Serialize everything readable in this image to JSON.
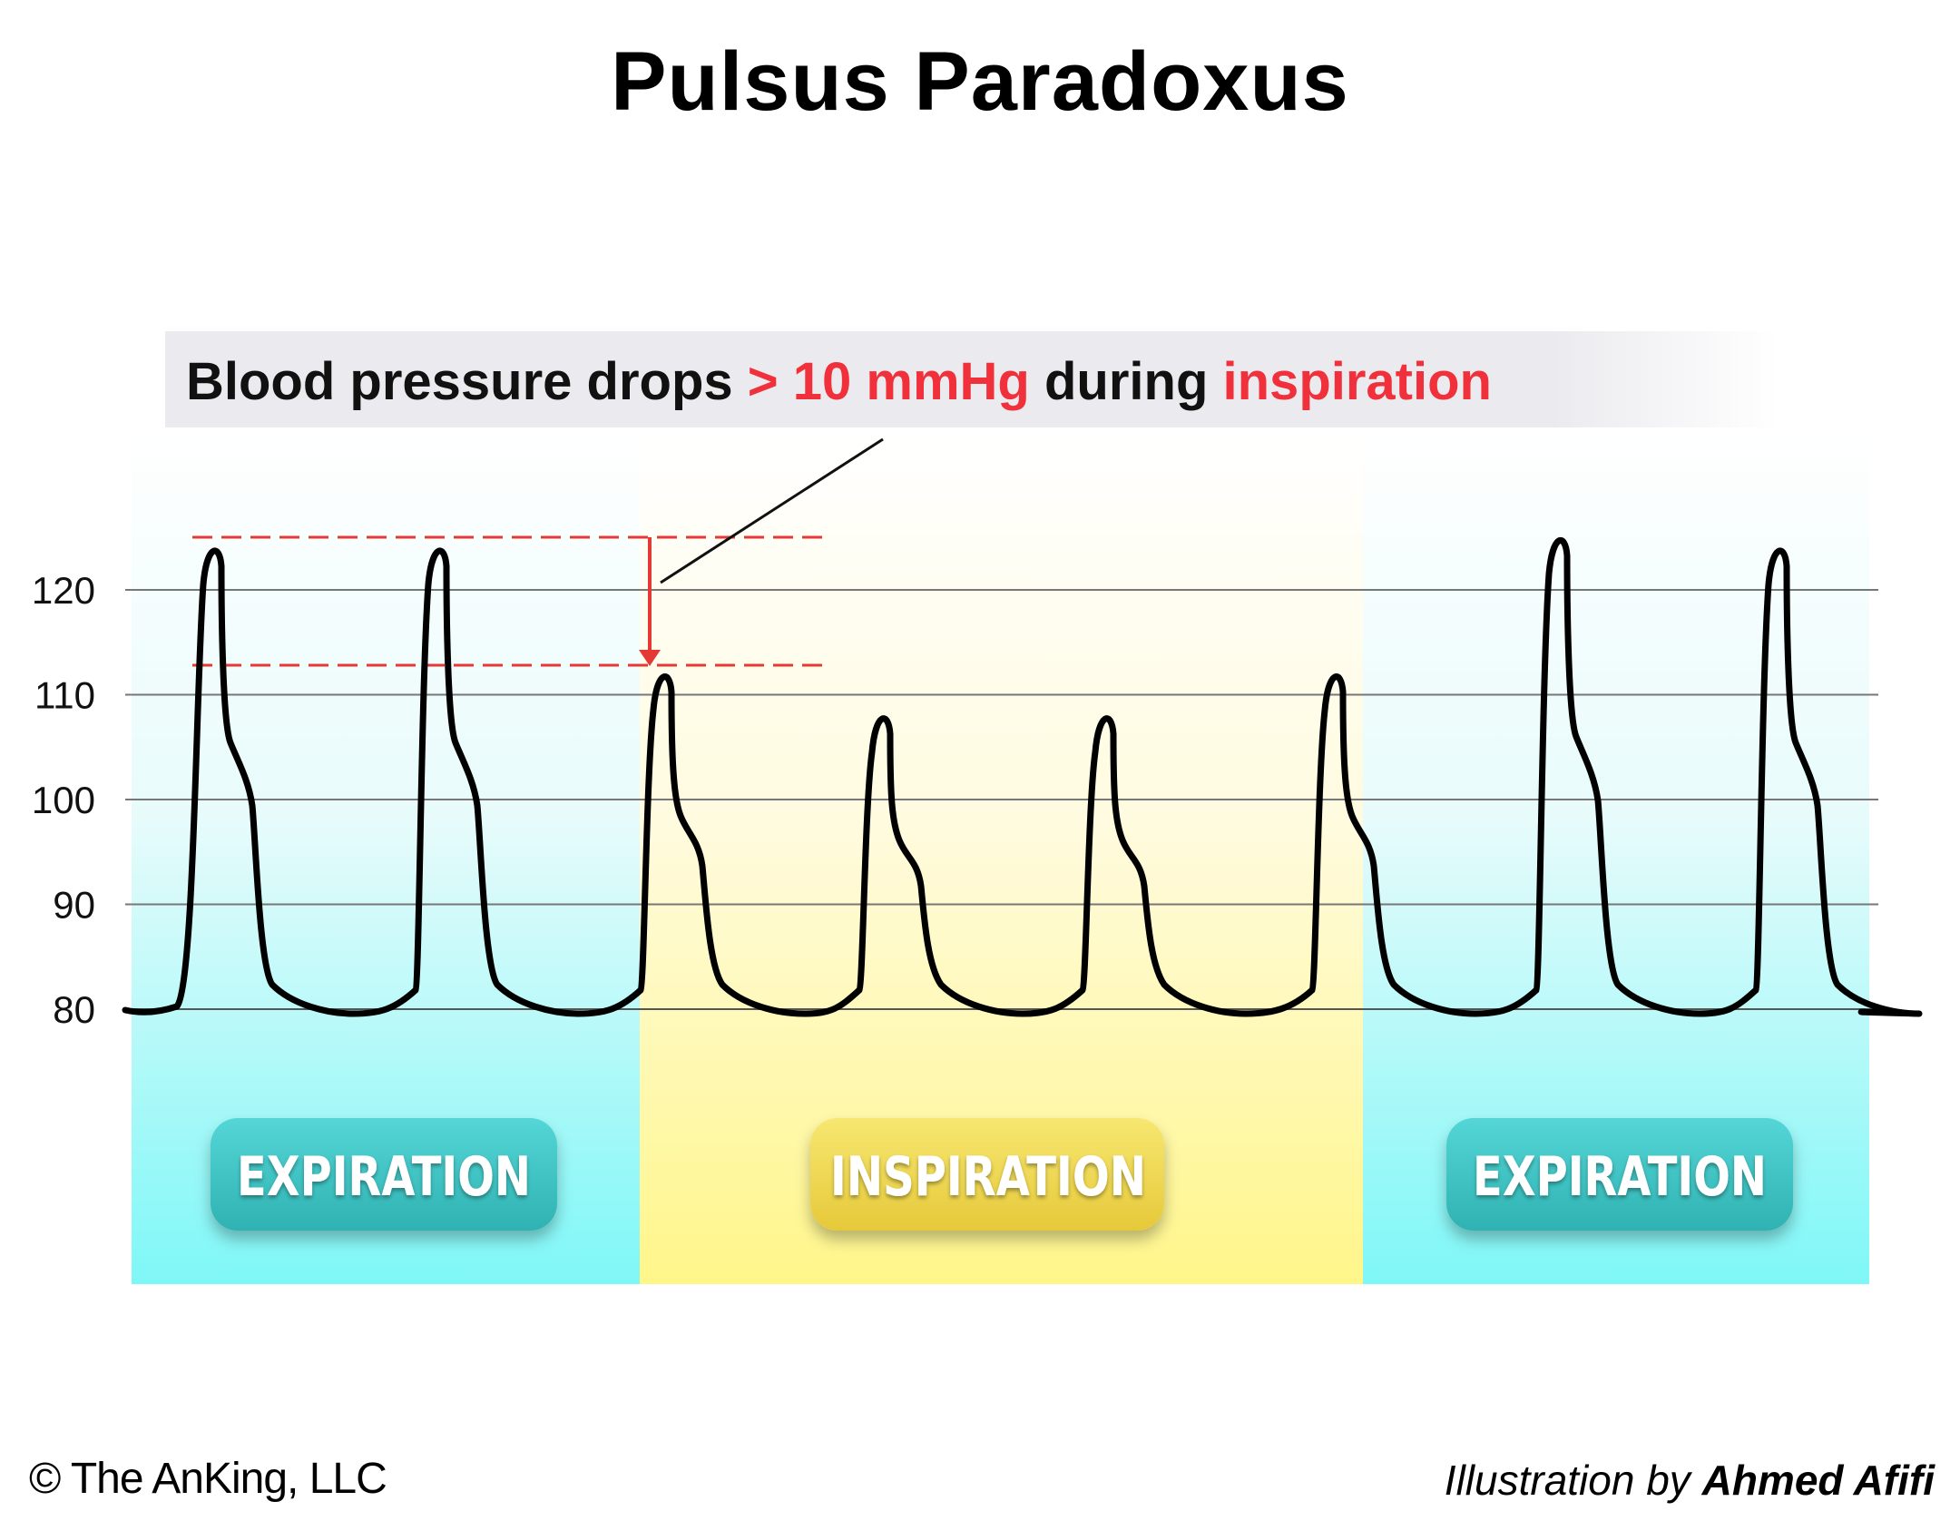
{
  "title": "Pulsus Paradoxus",
  "callout": {
    "prefix": "Blood pressure drops",
    "threshold": "> 10 mmHg",
    "middle": "during",
    "phase": "inspiration"
  },
  "phases": [
    {
      "label": "EXPIRATION",
      "kind": "expiration"
    },
    {
      "label": "INSPIRATION",
      "kind": "inspiration"
    },
    {
      "label": "EXPIRATION",
      "kind": "expiration"
    }
  ],
  "chart_data": {
    "type": "line",
    "y_ticks": [
      120,
      110,
      100,
      90,
      80
    ],
    "baseline": 80,
    "beats": [
      {
        "phase": "expiration",
        "peak": 124
      },
      {
        "phase": "expiration",
        "peak": 124
      },
      {
        "phase": "inspiration",
        "peak": 112
      },
      {
        "phase": "inspiration",
        "peak": 108
      },
      {
        "phase": "inspiration",
        "peak": 108
      },
      {
        "phase": "inspiration",
        "peak": 112
      },
      {
        "phase": "expiration",
        "peak": 125
      },
      {
        "phase": "expiration",
        "peak": 124
      }
    ],
    "reference_high": 124,
    "reference_low": 112,
    "colors": {
      "trace": "#000000",
      "reference": "#e53935",
      "expiration_bg": "#7ff7f7",
      "inspiration_bg": "#fff899",
      "expiration_badge": "#3cc3c3",
      "inspiration_badge": "#f2da4e",
      "callout_bg": "#ebebef"
    }
  },
  "footer": {
    "copyright": "© The AnKing, LLC",
    "credit_prefix": "Illustration by",
    "credit_name": "Ahmed Afifi"
  }
}
